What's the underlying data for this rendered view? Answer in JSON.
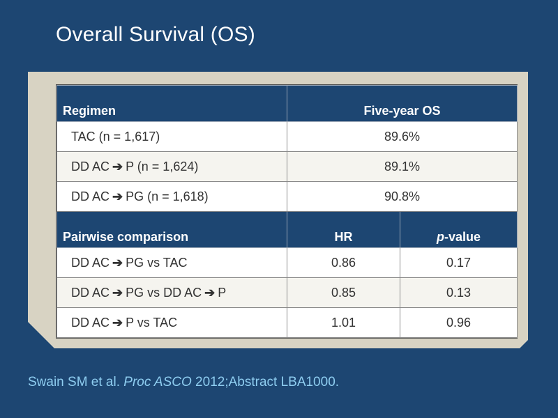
{
  "slide": {
    "title": "Overall Survival (OS)"
  },
  "table1": {
    "headers": {
      "regimen": "Regimen",
      "os": "Five-year OS"
    },
    "rows": [
      {
        "a": "TAC (n = 1,617)",
        "pre": "",
        "post": "",
        "value": "89.6%"
      },
      {
        "pre": "DD AC",
        "post": "P (n = 1,624)",
        "value": "89.1%"
      },
      {
        "pre": "DD AC",
        "post": "PG (n = 1,618)",
        "value": "90.8%"
      }
    ]
  },
  "table2": {
    "headers": {
      "comparison": "Pairwise comparison",
      "hr": "HR",
      "p_ital": "p",
      "p_rest": "-value"
    },
    "rows": [
      {
        "pre": "DD AC",
        "mid": "PG vs TAC",
        "hr": "0.86",
        "p": "0.17"
      },
      {
        "pre": "DD AC",
        "mid": "PG vs DD AC",
        "post": "P",
        "hr": "0.85",
        "p": "0.13"
      },
      {
        "pre": "DD AC",
        "mid": "P vs TAC",
        "hr": "1.01",
        "p": "0.96"
      }
    ]
  },
  "citation": {
    "authors": "Swain SM et al. ",
    "journal": "Proc ASCO",
    "rest": " 2012;Abstract LBA1000."
  },
  "arrow_glyph": "➔",
  "colors": {
    "background": "#1d4672",
    "panel": "#d8d3c3",
    "header": "#1d4672",
    "citation": "#8ecdf0"
  }
}
